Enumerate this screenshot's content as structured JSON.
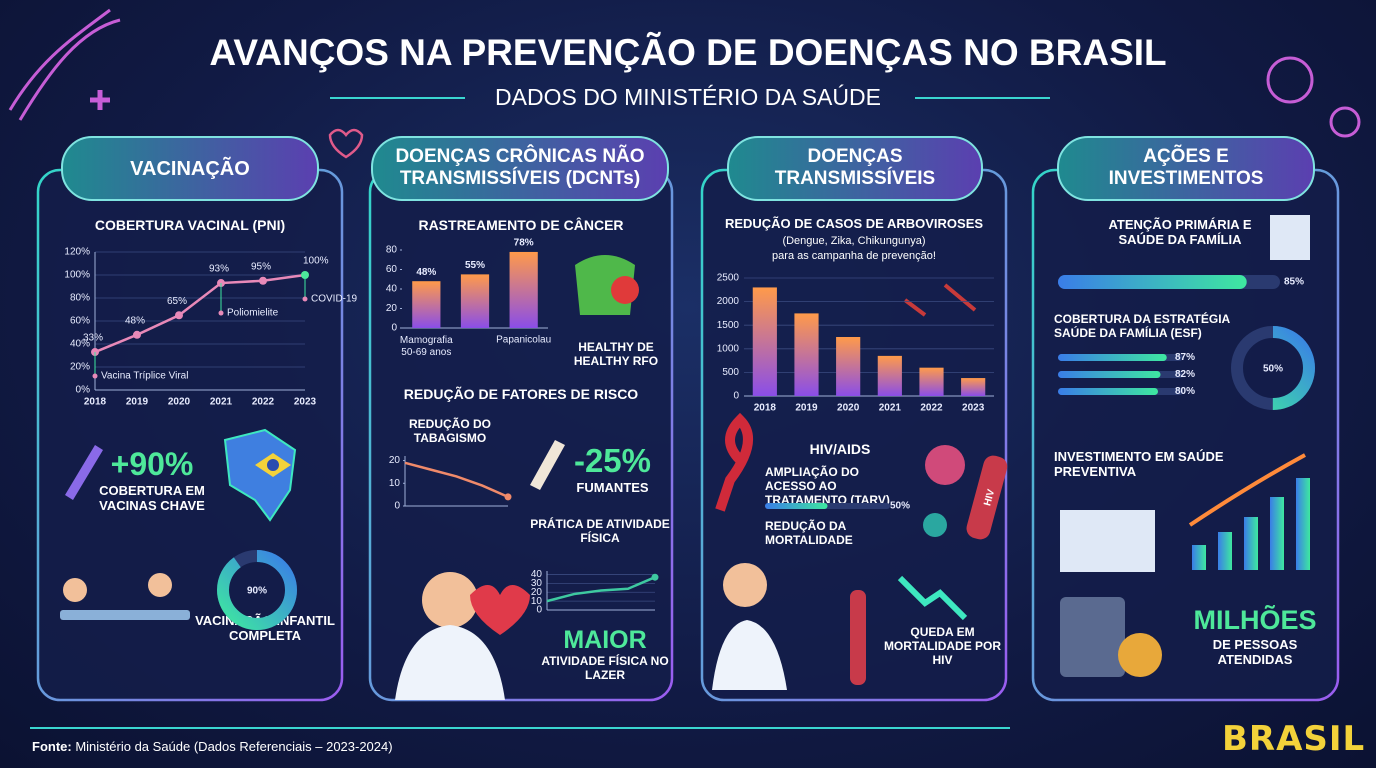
{
  "header": {
    "title": "AVANÇOS NA PREVENÇÃO DE DOENÇAS NO BRASIL",
    "subtitle": "DADOS DO MINISTÉRIO DA SAÚDE"
  },
  "panels": [
    {
      "title": "VACINAÇÃO",
      "stat": "+90%",
      "stat_label": "COBERTURA EM VACINAS CHAVE",
      "donut": {
        "value": 90,
        "label": "90%"
      },
      "donut_label": "VACINAÇÃO INFANTIL COMPLETA"
    },
    {
      "title": "DOENÇAS CRÔNICAS NÃO TRANSMISSÍVEIS (DCNTs)",
      "food_label": "HEALTHY DE HEALTHY RFO",
      "section": "REDUÇÃO DE FATORES DE RISCO",
      "stat": "-25%",
      "stat_label": "FUMANTES",
      "stat2": "MAIOR",
      "stat2_label": "ATIVIDADE FÍSICA NO LAZER"
    },
    {
      "title": "DOENÇAS TRANSMISSÍVEIS",
      "hiv_title": "HIV/AIDS",
      "hiv_text": "AMPLIAÇÃO DO ACESSO AO TRATAMENTO (TARV)",
      "hiv_bar": {
        "value": 50,
        "label": "50%"
      },
      "hiv_text2": "REDUÇÃO DA MORTALIDADE",
      "drop_label": "QUEDA EM MORTALIDADE POR HIV",
      "tube_label": "HIV"
    },
    {
      "title": "AÇÕES E INVESTIMENTOS",
      "aps": "ATENÇÃO PRIMÁRIA E SAÚDE DA FAMÍLIA",
      "aps_bar": {
        "value": 85,
        "label": "85%"
      },
      "esf": "COBERTURA DA ESTRATÉGIA SAÚDE DA FAMÍLIA (ESF)",
      "esf_bars": [
        {
          "value": 87,
          "label": "87%"
        },
        {
          "value": 82,
          "label": "82%"
        },
        {
          "value": 80,
          "label": "80%"
        }
      ],
      "esf_donut": {
        "value": 50,
        "label": "50%"
      },
      "invest": "INVESTIMENTO EM SAÚDE PREVENTIVA",
      "millions": "MILHÕES",
      "millions_label": "DE PESSOAS ATENDIDAS"
    }
  ],
  "chart_data": [
    {
      "type": "line",
      "title": "COBERTURA VACINAL (PNI)",
      "categories": [
        "2018",
        "2019",
        "2020",
        "2021",
        "2022",
        "2023"
      ],
      "values": [
        33,
        48,
        65,
        93,
        95,
        100
      ],
      "value_labels": [
        "33%",
        "48%",
        "65%",
        "93%",
        "95%",
        "100%"
      ],
      "color": "#e889b8",
      "ylim": [
        0,
        120
      ],
      "yticks": [
        {
          "value": 0,
          "label": "0%"
        },
        {
          "value": 20,
          "label": "20%"
        },
        {
          "value": 40,
          "label": "40%"
        },
        {
          "value": 60,
          "label": "60%"
        },
        {
          "value": 80,
          "label": "80%"
        },
        {
          "value": 100,
          "label": "100%"
        },
        {
          "value": 120,
          "label": "120%"
        }
      ],
      "grid": true,
      "annotations": [
        "Vacina Tríplice Viral",
        "Poliomielite",
        "COVID-19"
      ]
    },
    {
      "type": "bar",
      "title": "RASTREAMENTO DE CÂNCER",
      "categories": [
        "Mamografia 50-69 anos",
        null,
        "Papanicolau"
      ],
      "values": [
        48,
        55,
        78
      ],
      "value_labels": [
        "48%",
        "55%",
        "78%"
      ],
      "ylim": [
        0,
        80
      ],
      "yticks": [
        0,
        20,
        40,
        60,
        80
      ],
      "grid": false
    },
    {
      "type": "line",
      "title": "REDUÇÃO DO TABAGISMO",
      "categories": [
        null,
        null,
        null,
        null,
        null
      ],
      "values": [
        19,
        16,
        13,
        9,
        4
      ],
      "color": "#f08a6a",
      "ylim": [
        0,
        22
      ],
      "yticks": [
        0,
        10,
        20
      ],
      "grid": false,
      "arrow": true
    },
    {
      "type": "line",
      "title": "PRÁTICA DE ATIVIDADE FÍSICA",
      "categories": [
        null,
        null,
        null,
        null,
        null
      ],
      "values": [
        10,
        18,
        22,
        24,
        37
      ],
      "color": "#3ec9a0",
      "ylim": [
        0,
        44
      ],
      "yticks": [
        0,
        10,
        20,
        30,
        40
      ],
      "grid": true,
      "arrow": true
    },
    {
      "type": "bar",
      "title": "REDUÇÃO DE CASOS DE ARBOVIROSES",
      "subtitle": "(Dengue, Zika, Chikungunya)",
      "note": "para as campanha de prevenção!",
      "categories": [
        "2018",
        "2019",
        "2020",
        "2021",
        "2022",
        "2023"
      ],
      "values": [
        2300,
        1750,
        1250,
        850,
        600,
        380
      ],
      "ylim": [
        0,
        2500
      ],
      "yticks": [
        0,
        500,
        1000,
        1500,
        2000,
        2500
      ],
      "grid": true
    }
  ],
  "footer": {
    "source_label": "Fonte:",
    "source": "Ministério da Saúde (Dados Referenciais – 2023-2024)",
    "brand": "BRASIL"
  }
}
